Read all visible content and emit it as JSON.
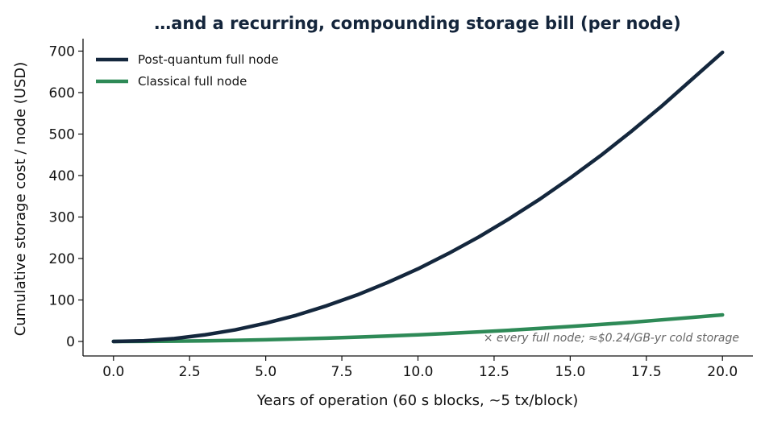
{
  "chart_data": {
    "type": "line",
    "title": "…and a recurring, compounding storage bill (per node)",
    "xlabel": "Years of operation (60 s blocks, ~5 tx/block)",
    "ylabel": "Cumulative storage cost / node (USD)",
    "xlim": [
      -1,
      21
    ],
    "ylim": [
      -35,
      730
    ],
    "xticks": [
      0,
      2.5,
      5,
      7.5,
      10,
      12.5,
      15,
      17.5,
      20
    ],
    "xtick_labels": [
      "0.0",
      "2.5",
      "5.0",
      "7.5",
      "10.0",
      "12.5",
      "15.0",
      "17.5",
      "20.0"
    ],
    "yticks": [
      0,
      100,
      200,
      300,
      400,
      500,
      600,
      700
    ],
    "ytick_labels": [
      "0",
      "100",
      "200",
      "300",
      "400",
      "500",
      "600",
      "700"
    ],
    "x": [
      0,
      1,
      2,
      3,
      4,
      5,
      6,
      7,
      8,
      9,
      10,
      11,
      12,
      13,
      14,
      15,
      16,
      17,
      18,
      19,
      20
    ],
    "series": [
      {
        "name": "Post-quantum full node",
        "color": "#14273d",
        "values": [
          0,
          1.7,
          7,
          16,
          28,
          44,
          63,
          86,
          112,
          142,
          175,
          212,
          252,
          296,
          343,
          394,
          448,
          506,
          567,
          632,
          697
        ]
      },
      {
        "name": "Classical full node",
        "color": "#2e8a57",
        "values": [
          0,
          0.2,
          0.6,
          1.4,
          2.6,
          4,
          6,
          8,
          10.3,
          13,
          16,
          19.4,
          23,
          27,
          31.5,
          36,
          41,
          46,
          52,
          58,
          64
        ]
      }
    ],
    "legend_position": "top-left",
    "annotation": "× every full node; ≈$0.24/GB-yr cold storage",
    "grid": false
  }
}
